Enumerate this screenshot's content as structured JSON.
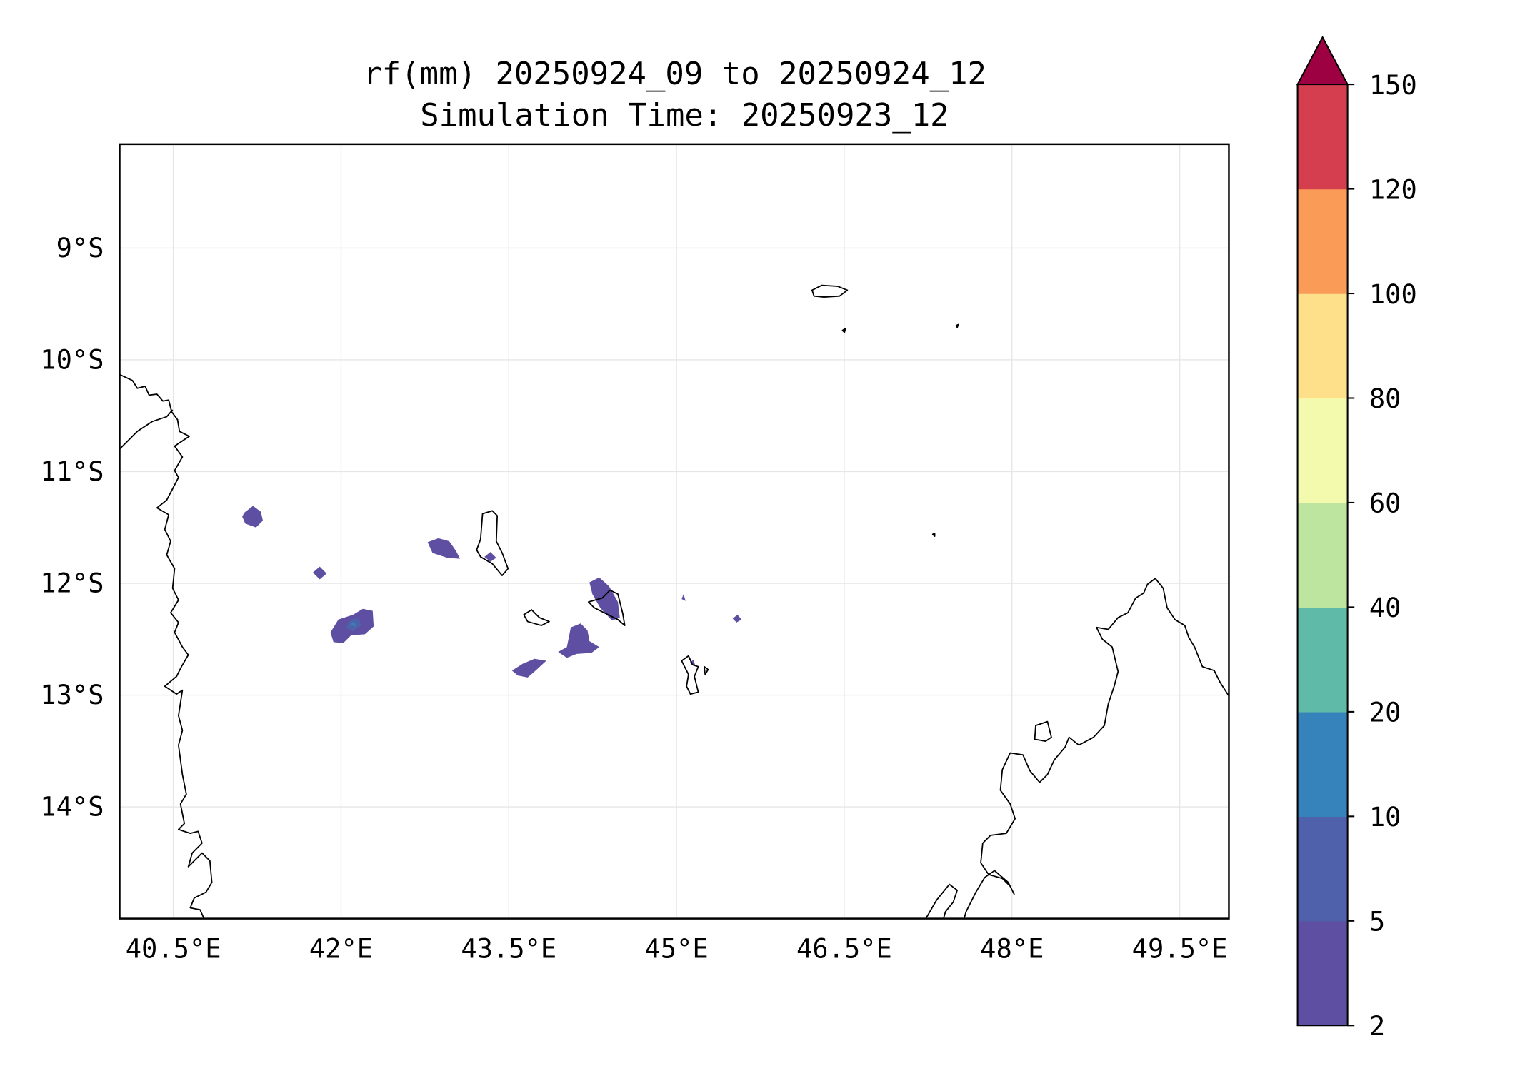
{
  "chart_data": {
    "type": "heatmap",
    "subtype": "filled contour map",
    "title": "rf(mm) 20250924_09 to 20250924_12",
    "subtitle": "Simulation Time: 20250923_12",
    "xlabel": "",
    "ylabel": "",
    "xlim": [
      40.02,
      49.94
    ],
    "ylim": [
      -15.0,
      -8.07
    ],
    "grid": true,
    "xticks": [
      40.5,
      42,
      43.5,
      45,
      46.5,
      48,
      49.5
    ],
    "xtick_labels": [
      "40.5°E",
      "42°E",
      "43.5°E",
      "45°E",
      "46.5°E",
      "48°E",
      "49.5°E"
    ],
    "yticks": [
      -9,
      -10,
      -11,
      -12,
      -13,
      -14
    ],
    "ytick_labels": [
      "9°S",
      "10°S",
      "11°S",
      "12°S",
      "13°S",
      "14°S"
    ],
    "colorbar": {
      "levels": [
        2,
        5,
        10,
        20,
        40,
        60,
        80,
        100,
        120,
        150
      ],
      "labels": [
        "2",
        "5",
        "10",
        "20",
        "40",
        "60",
        "80",
        "100",
        "120",
        "150"
      ],
      "colors": [
        "#5e4fa2",
        "#4f61aa",
        "#3682ba",
        "#5fbaa8",
        "#bee5a0",
        "#f4faad",
        "#fee08b",
        "#fa9c58",
        "#d53e4f"
      ],
      "extend_color": "#9e0142",
      "extend": "max"
    },
    "rain_areas_mm": [
      {
        "lon": 40.75,
        "lat": -11.4,
        "class": "2-5"
      },
      {
        "lon": 41.85,
        "lat": -11.9,
        "class": "2-5"
      },
      {
        "lon": 42.05,
        "lat": -12.35,
        "class": "5-10"
      },
      {
        "lon": 42.9,
        "lat": -11.7,
        "class": "2-5"
      },
      {
        "lon": 43.45,
        "lat": -11.75,
        "class": "2-5"
      },
      {
        "lon": 43.65,
        "lat": -12.75,
        "class": "2-5"
      },
      {
        "lon": 44.0,
        "lat": -12.5,
        "class": "2-5"
      },
      {
        "lon": 44.3,
        "lat": -12.15,
        "class": "2-5"
      },
      {
        "lon": 45.05,
        "lat": -12.15,
        "class": "2-5"
      },
      {
        "lon": 45.55,
        "lat": -12.3,
        "class": "2-5"
      }
    ]
  }
}
